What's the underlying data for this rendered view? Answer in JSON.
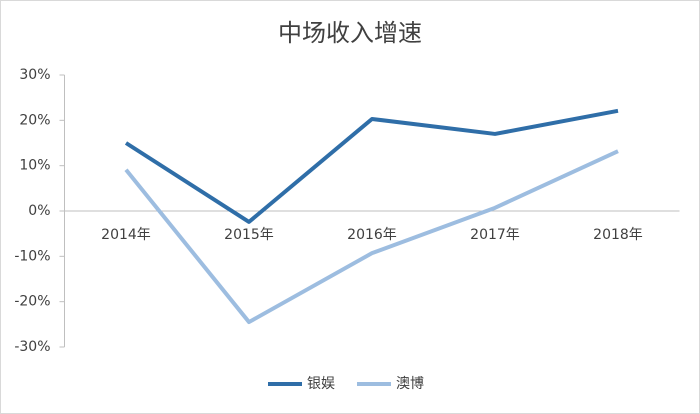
{
  "chart_data": {
    "type": "line",
    "title": "中场收入增速",
    "categories": [
      "2014年",
      "2015年",
      "2016年",
      "2017年",
      "2018年"
    ],
    "series": [
      {
        "name": "银娱",
        "color": "#2f6ea8",
        "values": [
          15.0,
          -2.4,
          20.3,
          17.0,
          22.1
        ]
      },
      {
        "name": "澳博",
        "color": "#9dbde0",
        "values": [
          9.1,
          -24.5,
          -9.3,
          0.7,
          13.2
        ]
      }
    ],
    "ylim": [
      -30,
      30
    ],
    "yticks": [
      {
        "value": -30,
        "label": "-30%"
      },
      {
        "value": -20,
        "label": "-20%"
      },
      {
        "value": -10,
        "label": "-10%"
      },
      {
        "value": 0,
        "label": "0%"
      },
      {
        "value": 10,
        "label": "10%"
      },
      {
        "value": 20,
        "label": "20%"
      },
      {
        "value": 30,
        "label": "30%"
      }
    ],
    "grid": false,
    "legend": "bottom"
  }
}
